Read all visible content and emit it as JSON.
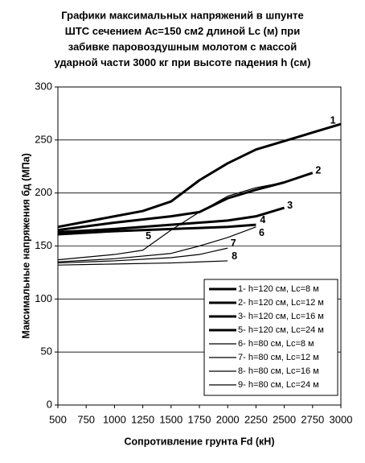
{
  "chart_data": {
    "type": "line",
    "title": [
      "Графики максимальных напряжений в шпунте",
      "ШТС сечением Ас=150 см2 длиной Lc (м) при",
      "забивке паровоздушным молотом с массой",
      "ударной части 3000 кг при высоте падения h (см)"
    ],
    "x_label": "Сопротивление грунта Fd (кН)",
    "y_label": "Максимальные напряжения бд  (МПа)",
    "xlim": [
      500,
      3000
    ],
    "xticks": [
      500,
      750,
      1000,
      1250,
      1500,
      1750,
      2000,
      2250,
      2500,
      2750,
      3000
    ],
    "ylim": [
      0,
      300
    ],
    "yticks": [
      0,
      50,
      100,
      150,
      200,
      250,
      300
    ],
    "grid": true,
    "legend": "bottom-right",
    "series": [
      {
        "name": "1- h=120 см, Lc=8 м",
        "color": "#000000",
        "line_width": 3,
        "x": [
          500,
          1000,
          1250,
          1500,
          1750,
          2000,
          2250,
          2500,
          2750,
          3000
        ],
        "values": [
          168,
          178,
          183,
          192,
          212,
          228,
          241,
          249,
          257,
          265
        ]
      },
      {
        "name": "2- h=120 см, Lc=12 м",
        "color": "#000000",
        "line_width": 3,
        "x": [
          500,
          1000,
          1500,
          1750,
          2000,
          2250,
          2500,
          2750
        ],
        "values": [
          165,
          172,
          178,
          182,
          195,
          203,
          210,
          219
        ]
      },
      {
        "name": "3- h=120 см, Lc=16 м",
        "color": "#000000",
        "line_width": 3,
        "x": [
          500,
          1000,
          1500,
          2000,
          2250,
          2500
        ],
        "values": [
          163,
          166,
          170,
          174,
          178,
          186
        ]
      },
      {
        "name": "5- h=120 см, Lc=24 м",
        "color": "#000000",
        "line_width": 3,
        "x": [
          500,
          1000,
          1500,
          2000,
          2250
        ],
        "values": [
          161,
          164,
          166,
          168,
          170
        ]
      },
      {
        "name": "6- h=80 см, Lc=8 м",
        "color": "#000000",
        "line_width": 1.2,
        "x": [
          500,
          1000,
          1250,
          1500,
          1750,
          2000,
          2250,
          2500
        ],
        "values": [
          137,
          142,
          146,
          165,
          182,
          197,
          205,
          210
        ]
      },
      {
        "name": "7- h=80 см, Lc=12 м",
        "color": "#000000",
        "line_width": 1.2,
        "x": [
          500,
          1000,
          1500,
          1750,
          2000,
          2250
        ],
        "values": [
          135,
          138,
          143,
          150,
          158,
          168
        ]
      },
      {
        "name": "8- h=80 см, Lc=16 м",
        "color": "#000000",
        "line_width": 1.2,
        "x": [
          500,
          1000,
          1500,
          1750,
          2000
        ],
        "values": [
          134,
          136,
          139,
          142,
          148
        ]
      },
      {
        "name": "9- h=80 см, Lc=24 м",
        "color": "#000000",
        "line_width": 1.2,
        "x": [
          500,
          1000,
          1500,
          2000
        ],
        "values": [
          132,
          133,
          134,
          136
        ]
      }
    ],
    "annotations": [
      {
        "text": "1",
        "x": 2930,
        "y": 268
      },
      {
        "text": "2",
        "x": 2800,
        "y": 221
      },
      {
        "text": "3",
        "x": 2550,
        "y": 188
      },
      {
        "text": "4",
        "x": 2310,
        "y": 174
      },
      {
        "text": "5",
        "x": 1300,
        "y": 159
      },
      {
        "text": "6",
        "x": 2300,
        "y": 162
      },
      {
        "text": "7",
        "x": 2050,
        "y": 152
      },
      {
        "text": "8",
        "x": 2060,
        "y": 140
      }
    ]
  }
}
